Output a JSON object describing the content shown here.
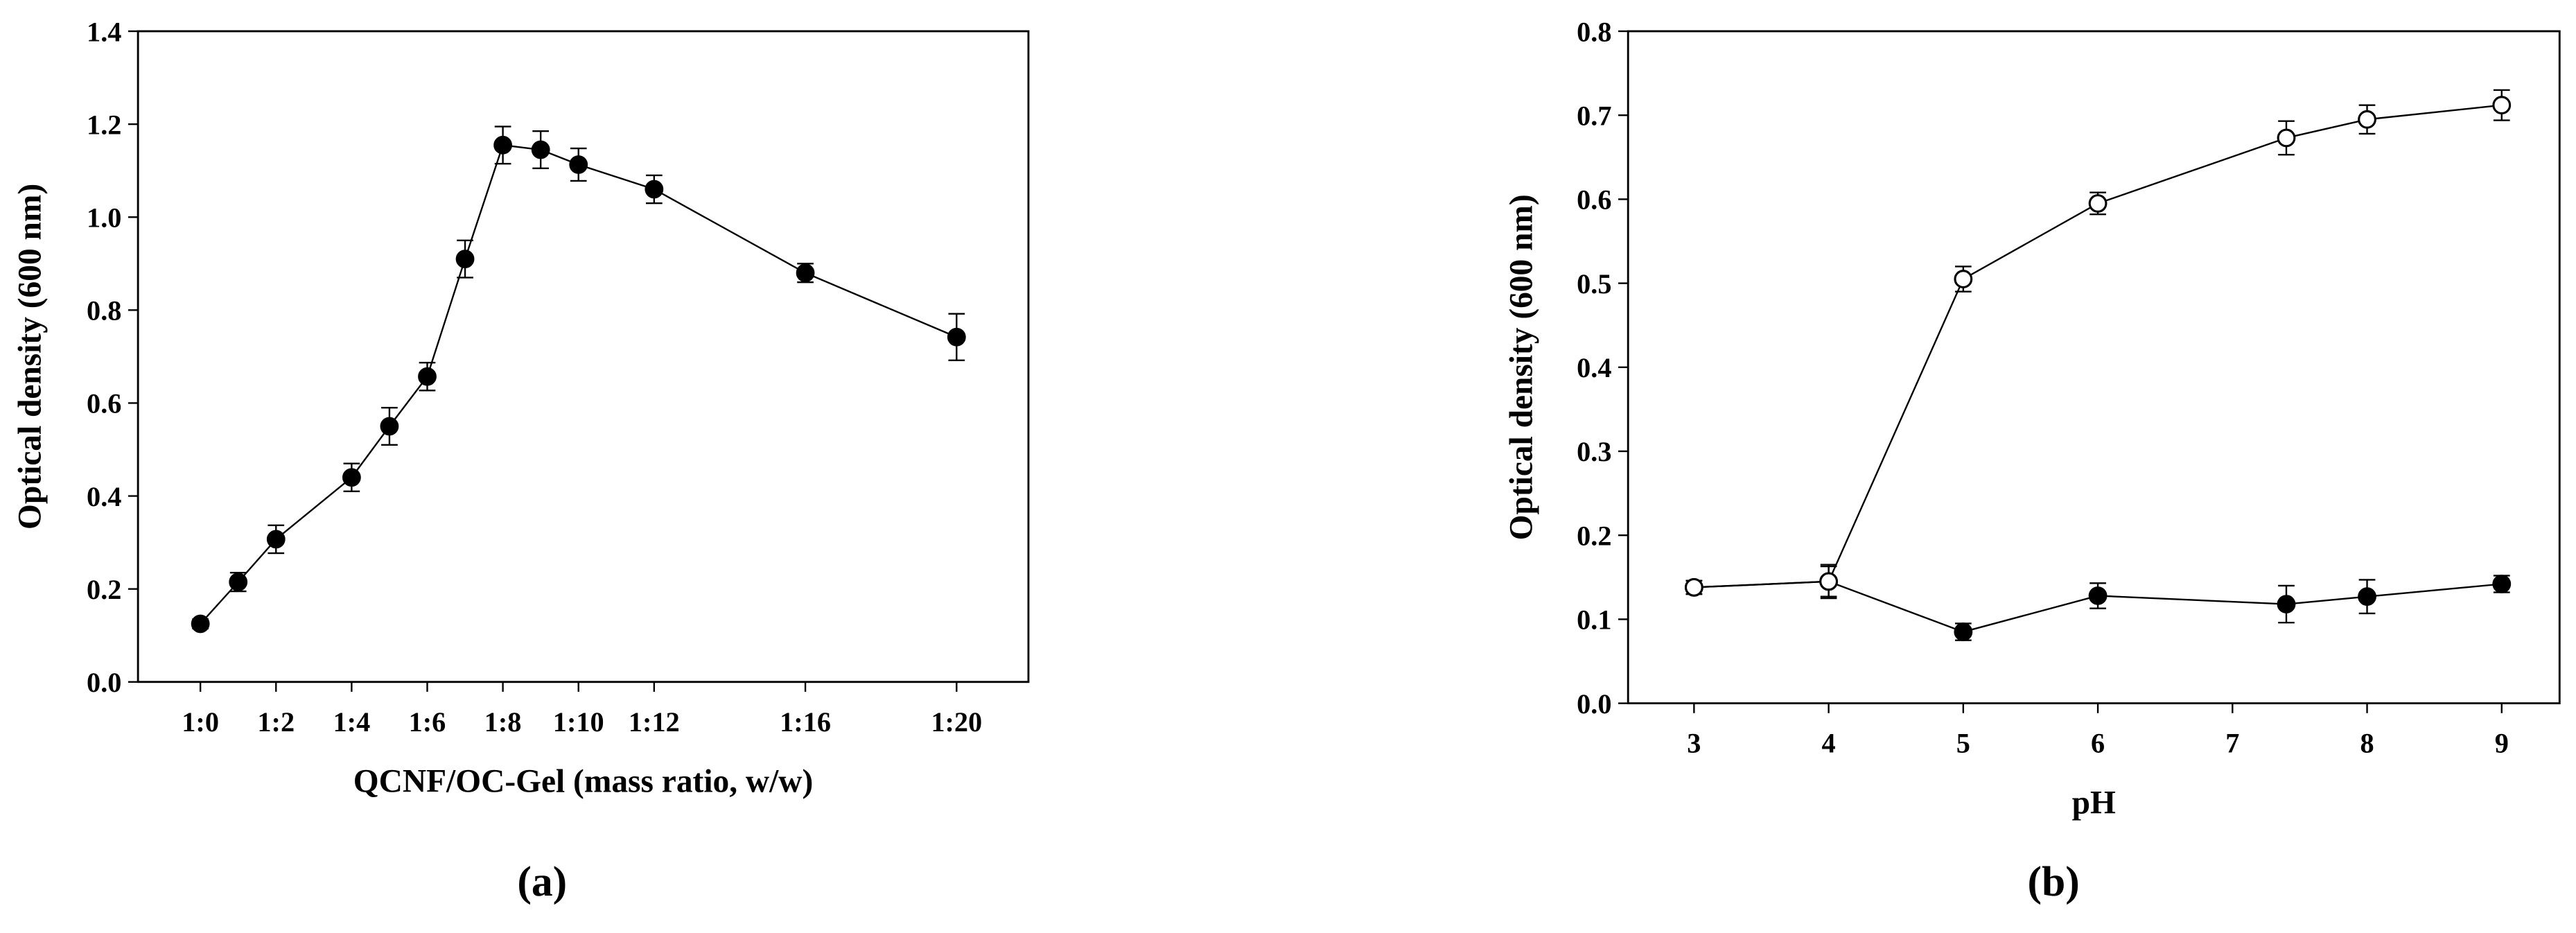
{
  "chart_data": [
    {
      "type": "line",
      "caption": "(a)",
      "xlabel": "QCNF/OC-Gel (mass ratio, w/w)",
      "ylabel": "Optical density (600 nm)",
      "xlim": [
        -1.65,
        21.9
      ],
      "ylim": [
        0,
        1.4
      ],
      "xticks": [
        {
          "value": 0,
          "label": "1:0"
        },
        {
          "value": 2,
          "label": "1:2"
        },
        {
          "value": 4,
          "label": "1:4"
        },
        {
          "value": 6,
          "label": "1:6"
        },
        {
          "value": 8,
          "label": "1:8"
        },
        {
          "value": 10,
          "label": "1:10"
        },
        {
          "value": 12,
          "label": "1:12"
        },
        {
          "value": 16,
          "label": "1:16"
        },
        {
          "value": 20,
          "label": "1:20"
        }
      ],
      "yticks": [
        {
          "value": 0,
          "label": "0.0"
        },
        0.2,
        0.4,
        0.6,
        0.8,
        {
          "value": 1,
          "label": "1.0"
        },
        1.2,
        1.4
      ],
      "x": [
        0,
        1,
        2,
        4,
        5,
        6,
        7,
        8,
        9,
        10,
        12,
        16,
        20
      ],
      "series": [
        {
          "color": "#000000",
          "values": [
            0.125,
            0.215,
            0.307,
            0.44,
            0.55,
            0.657,
            0.91,
            1.155,
            1.145,
            1.113,
            1.06,
            0.88,
            0.742
          ],
          "errors": [
            0.01,
            0.02,
            0.03,
            0.03,
            0.04,
            0.03,
            0.04,
            0.04,
            0.04,
            0.035,
            0.03,
            0.02,
            0.05
          ]
        }
      ]
    },
    {
      "type": "line",
      "caption": "(b)",
      "xlabel": "pH",
      "ylabel": "Optical density (600 nm)",
      "xlim": [
        2.51,
        9.43
      ],
      "ylim": [
        0,
        0.8
      ],
      "xticks": [
        3,
        4,
        5,
        6,
        7,
        8,
        9
      ],
      "yticks": [
        {
          "value": 0,
          "label": "0.0"
        },
        0.1,
        0.2,
        0.3,
        0.4,
        0.5,
        0.6,
        0.7,
        0.8
      ],
      "x": [
        3,
        4,
        5,
        6,
        7.4,
        8,
        9
      ],
      "series": [
        {
          "color": "#000000",
          "values": [
            0.138,
            0.145,
            0.085,
            0.128,
            0.118,
            0.127,
            0.142
          ],
          "errors": [
            0.008,
            0.018,
            0.01,
            0.015,
            0.022,
            0.02,
            0.01
          ]
        },
        {
          "color": "#ffffff",
          "values": [
            0.138,
            0.145,
            0.505,
            0.595,
            0.673,
            0.695,
            0.712
          ],
          "errors": [
            0.008,
            0.02,
            0.015,
            0.013,
            0.02,
            0.017,
            0.018
          ]
        }
      ]
    }
  ]
}
